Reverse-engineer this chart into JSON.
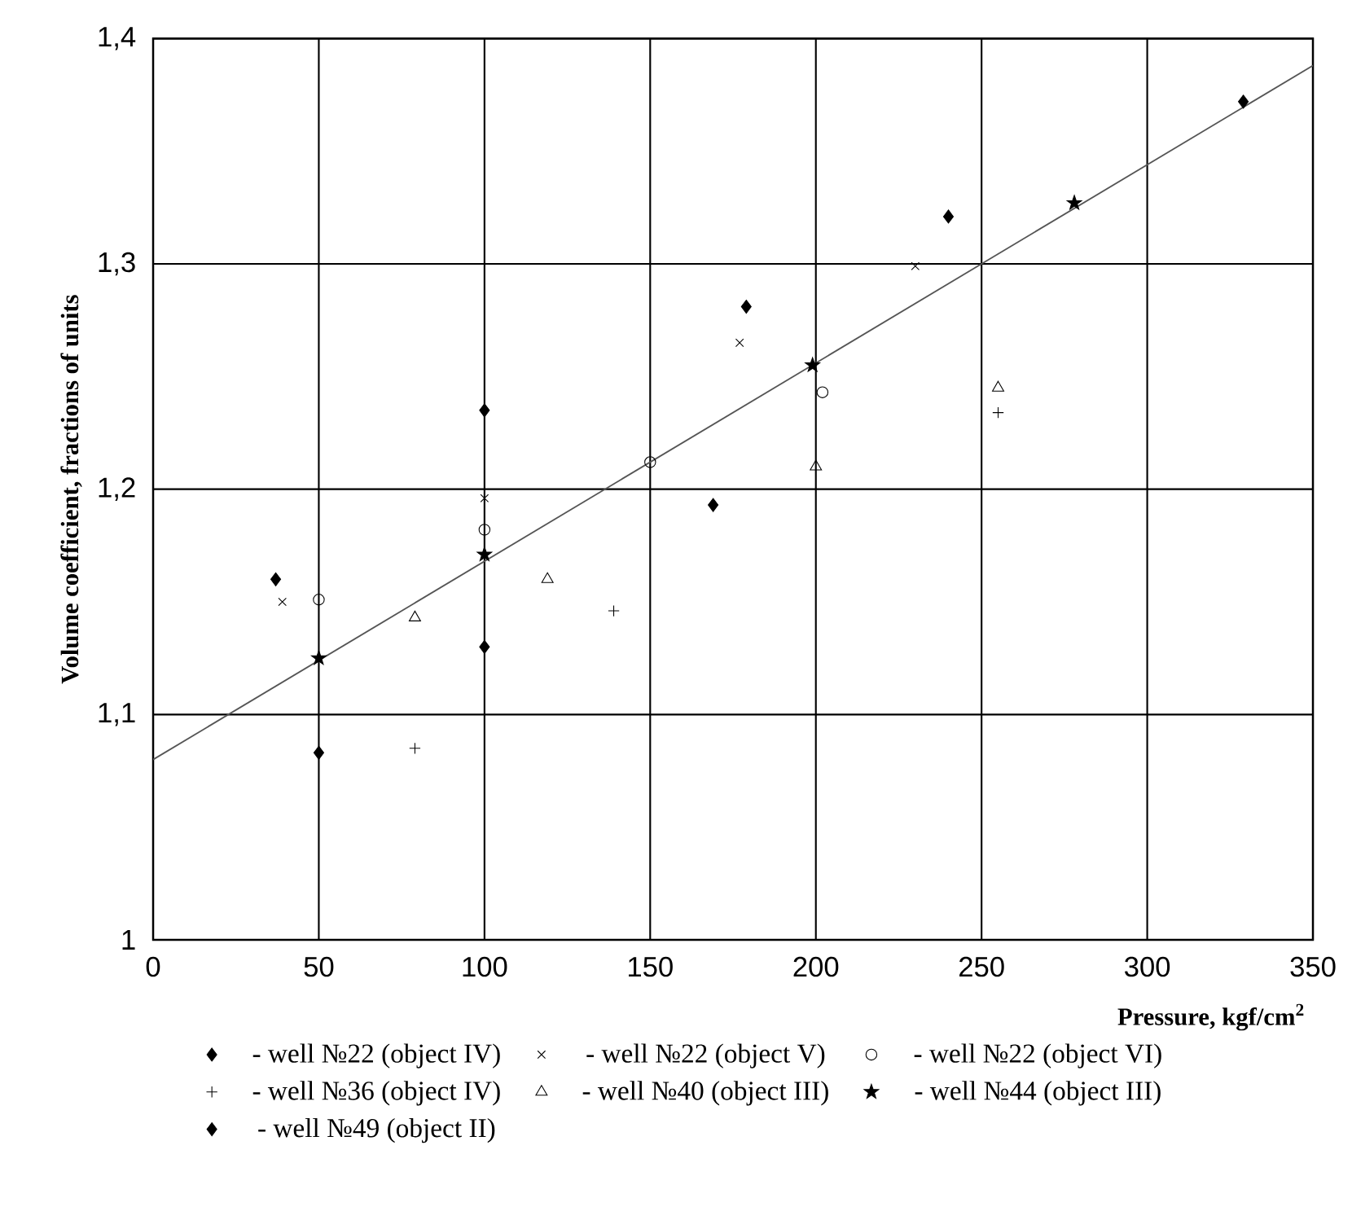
{
  "chart_data": {
    "type": "scatter",
    "xlabel": "Pressure, kgf/cm$^{2}$",
    "ylabel": "Volume coefficient, fractions of units",
    "xlim": [
      0,
      350
    ],
    "ylim": [
      1,
      1.4
    ],
    "xticks": [
      0,
      50,
      100,
      150,
      200,
      250,
      300,
      350
    ],
    "yticks": [
      1,
      {
        "value": 1.1,
        "label": "1,1"
      },
      {
        "value": 1.2,
        "label": "1,2"
      },
      {
        "value": 1.3,
        "label": "1,3"
      },
      {
        "value": 1.4,
        "label": "1,4"
      }
    ],
    "grid": true,
    "legend": "bottom",
    "series": [
      {
        "name": "- well №22 (object IV)",
        "color": "#000000",
        "marker": "diamond",
        "x": [
          50,
          100,
          169,
          329
        ],
        "values": [
          1.083,
          1.13,
          1.193,
          1.372
        ]
      },
      {
        "name": "- well №22 (object V)",
        "color": "#000000",
        "marker": "cross",
        "x": [
          39,
          100,
          177,
          230
        ],
        "values": [
          1.15,
          1.196,
          1.265,
          1.299
        ]
      },
      {
        "name": "- well №22 (object VI)",
        "color": "#000000",
        "marker": "circle",
        "x": [
          50,
          100,
          150,
          202
        ],
        "values": [
          1.151,
          1.182,
          1.212,
          1.243
        ]
      },
      {
        "name": "- well №36 (object IV)",
        "color": "#000000",
        "marker": "plus",
        "x": [
          79,
          139,
          255
        ],
        "values": [
          1.085,
          1.146,
          1.234
        ]
      },
      {
        "name": "- well №40 (object III)",
        "color": "#000000",
        "marker": "triangle",
        "x": [
          79,
          119,
          200,
          255
        ],
        "values": [
          1.143,
          1.16,
          1.21,
          1.245
        ]
      },
      {
        "name": "- well №44 (object III)",
        "color": "#000000",
        "marker": "star",
        "x": [
          50,
          100,
          199,
          278
        ],
        "values": [
          1.125,
          1.171,
          1.255,
          1.327
        ]
      },
      {
        "name": "- well №49 (object II)",
        "color": "#000000",
        "marker": "diamond",
        "x": [
          37,
          100,
          179,
          240
        ],
        "values": [
          1.16,
          1.235,
          1.281,
          1.321
        ]
      },
      {
        "type": "line",
        "color": "#555555",
        "marker": "none",
        "x": [
          0,
          350
        ],
        "values": [
          1.08,
          1.388
        ]
      }
    ]
  }
}
